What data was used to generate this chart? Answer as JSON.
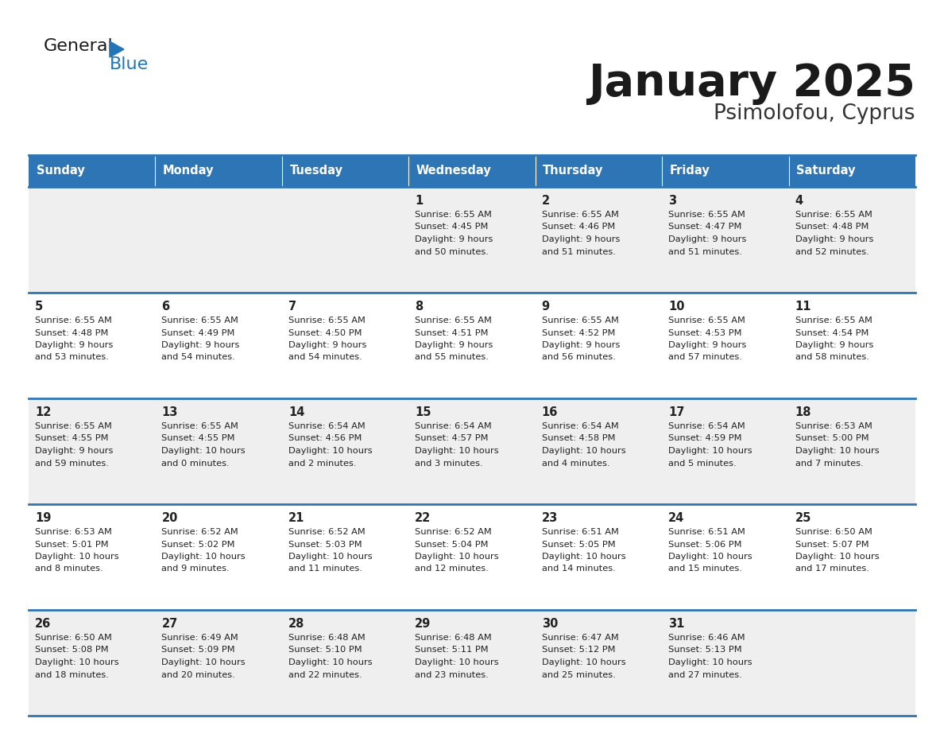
{
  "title": "January 2025",
  "subtitle": "Psimolofou, Cyprus",
  "header_bg": "#2E75B6",
  "header_text_color": "#FFFFFF",
  "cell_bg_even": "#EFEFEF",
  "cell_bg_odd": "#FFFFFF",
  "day_names": [
    "Sunday",
    "Monday",
    "Tuesday",
    "Wednesday",
    "Thursday",
    "Friday",
    "Saturday"
  ],
  "title_color": "#1a1a1a",
  "subtitle_color": "#333333",
  "border_color": "#2E75B6",
  "text_color": "#222222",
  "logo_general_color": "#1a1a1a",
  "logo_blue_color": "#2175B6",
  "logo_triangle_color": "#2175B6",
  "calendar_data": [
    [
      null,
      null,
      null,
      {
        "day": 1,
        "sunrise": "6:55 AM",
        "sunset": "4:45 PM",
        "daylight": "9 hours",
        "daylight2": "and 50 minutes."
      },
      {
        "day": 2,
        "sunrise": "6:55 AM",
        "sunset": "4:46 PM",
        "daylight": "9 hours",
        "daylight2": "and 51 minutes."
      },
      {
        "day": 3,
        "sunrise": "6:55 AM",
        "sunset": "4:47 PM",
        "daylight": "9 hours",
        "daylight2": "and 51 minutes."
      },
      {
        "day": 4,
        "sunrise": "6:55 AM",
        "sunset": "4:48 PM",
        "daylight": "9 hours",
        "daylight2": "and 52 minutes."
      }
    ],
    [
      {
        "day": 5,
        "sunrise": "6:55 AM",
        "sunset": "4:48 PM",
        "daylight": "9 hours",
        "daylight2": "and 53 minutes."
      },
      {
        "day": 6,
        "sunrise": "6:55 AM",
        "sunset": "4:49 PM",
        "daylight": "9 hours",
        "daylight2": "and 54 minutes."
      },
      {
        "day": 7,
        "sunrise": "6:55 AM",
        "sunset": "4:50 PM",
        "daylight": "9 hours",
        "daylight2": "and 54 minutes."
      },
      {
        "day": 8,
        "sunrise": "6:55 AM",
        "sunset": "4:51 PM",
        "daylight": "9 hours",
        "daylight2": "and 55 minutes."
      },
      {
        "day": 9,
        "sunrise": "6:55 AM",
        "sunset": "4:52 PM",
        "daylight": "9 hours",
        "daylight2": "and 56 minutes."
      },
      {
        "day": 10,
        "sunrise": "6:55 AM",
        "sunset": "4:53 PM",
        "daylight": "9 hours",
        "daylight2": "and 57 minutes."
      },
      {
        "day": 11,
        "sunrise": "6:55 AM",
        "sunset": "4:54 PM",
        "daylight": "9 hours",
        "daylight2": "and 58 minutes."
      }
    ],
    [
      {
        "day": 12,
        "sunrise": "6:55 AM",
        "sunset": "4:55 PM",
        "daylight": "9 hours",
        "daylight2": "and 59 minutes."
      },
      {
        "day": 13,
        "sunrise": "6:55 AM",
        "sunset": "4:55 PM",
        "daylight": "10 hours",
        "daylight2": "and 0 minutes."
      },
      {
        "day": 14,
        "sunrise": "6:54 AM",
        "sunset": "4:56 PM",
        "daylight": "10 hours",
        "daylight2": "and 2 minutes."
      },
      {
        "day": 15,
        "sunrise": "6:54 AM",
        "sunset": "4:57 PM",
        "daylight": "10 hours",
        "daylight2": "and 3 minutes."
      },
      {
        "day": 16,
        "sunrise": "6:54 AM",
        "sunset": "4:58 PM",
        "daylight": "10 hours",
        "daylight2": "and 4 minutes."
      },
      {
        "day": 17,
        "sunrise": "6:54 AM",
        "sunset": "4:59 PM",
        "daylight": "10 hours",
        "daylight2": "and 5 minutes."
      },
      {
        "day": 18,
        "sunrise": "6:53 AM",
        "sunset": "5:00 PM",
        "daylight": "10 hours",
        "daylight2": "and 7 minutes."
      }
    ],
    [
      {
        "day": 19,
        "sunrise": "6:53 AM",
        "sunset": "5:01 PM",
        "daylight": "10 hours",
        "daylight2": "and 8 minutes."
      },
      {
        "day": 20,
        "sunrise": "6:52 AM",
        "sunset": "5:02 PM",
        "daylight": "10 hours",
        "daylight2": "and 9 minutes."
      },
      {
        "day": 21,
        "sunrise": "6:52 AM",
        "sunset": "5:03 PM",
        "daylight": "10 hours",
        "daylight2": "and 11 minutes."
      },
      {
        "day": 22,
        "sunrise": "6:52 AM",
        "sunset": "5:04 PM",
        "daylight": "10 hours",
        "daylight2": "and 12 minutes."
      },
      {
        "day": 23,
        "sunrise": "6:51 AM",
        "sunset": "5:05 PM",
        "daylight": "10 hours",
        "daylight2": "and 14 minutes."
      },
      {
        "day": 24,
        "sunrise": "6:51 AM",
        "sunset": "5:06 PM",
        "daylight": "10 hours",
        "daylight2": "and 15 minutes."
      },
      {
        "day": 25,
        "sunrise": "6:50 AM",
        "sunset": "5:07 PM",
        "daylight": "10 hours",
        "daylight2": "and 17 minutes."
      }
    ],
    [
      {
        "day": 26,
        "sunrise": "6:50 AM",
        "sunset": "5:08 PM",
        "daylight": "10 hours",
        "daylight2": "and 18 minutes."
      },
      {
        "day": 27,
        "sunrise": "6:49 AM",
        "sunset": "5:09 PM",
        "daylight": "10 hours",
        "daylight2": "and 20 minutes."
      },
      {
        "day": 28,
        "sunrise": "6:48 AM",
        "sunset": "5:10 PM",
        "daylight": "10 hours",
        "daylight2": "and 22 minutes."
      },
      {
        "day": 29,
        "sunrise": "6:48 AM",
        "sunset": "5:11 PM",
        "daylight": "10 hours",
        "daylight2": "and 23 minutes."
      },
      {
        "day": 30,
        "sunrise": "6:47 AM",
        "sunset": "5:12 PM",
        "daylight": "10 hours",
        "daylight2": "and 25 minutes."
      },
      {
        "day": 31,
        "sunrise": "6:46 AM",
        "sunset": "5:13 PM",
        "daylight": "10 hours",
        "daylight2": "and 27 minutes."
      },
      null
    ]
  ]
}
